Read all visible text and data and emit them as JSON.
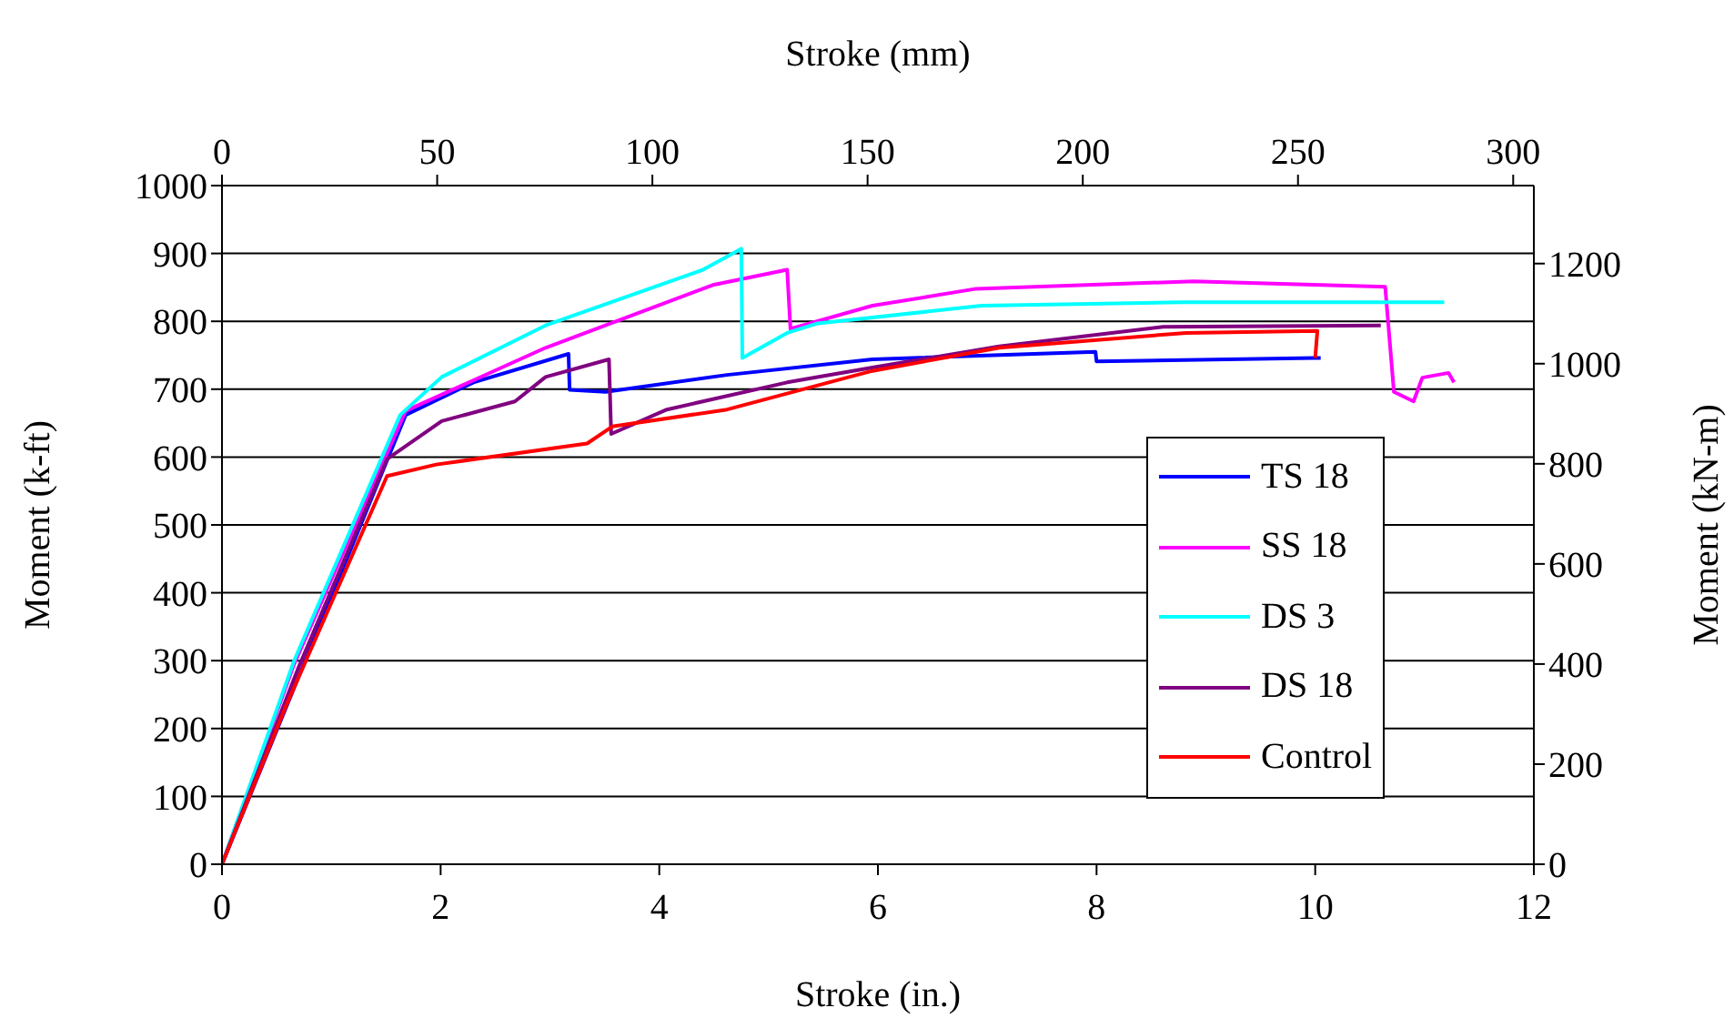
{
  "chart_data": {
    "type": "line",
    "xlabel": "Stroke (in.)",
    "x2label": "Stroke (mm)",
    "ylabel": "Moment (k-ft)",
    "y2label": "Moment (kN-m)",
    "xlim": [
      0,
      12
    ],
    "xticks": [
      0,
      2,
      4,
      6,
      8,
      10,
      12
    ],
    "ylim": [
      0,
      1000
    ],
    "yticks": [
      0,
      100,
      200,
      300,
      400,
      500,
      600,
      700,
      800,
      900,
      1000
    ],
    "x2lim": [
      0,
      304.8
    ],
    "x2ticks": [
      0,
      50,
      100,
      150,
      200,
      250,
      300
    ],
    "y2lim": [
      0,
      1355.8
    ],
    "y2ticks": [
      0,
      200,
      400,
      600,
      800,
      1000,
      1200
    ],
    "grid": "y",
    "legend": "right",
    "marker": "none",
    "line_style": "solid",
    "series": [
      {
        "name": "TS 18",
        "color": "#0000ff",
        "x": [
          0,
          1.68,
          2.3,
          3.17,
          3.18,
          3.51,
          4.62,
          5.95,
          7.99,
          8.0,
          9.99,
          10.05
        ],
        "values": [
          0,
          662,
          710,
          752,
          699,
          696,
          721,
          744,
          755,
          741,
          746,
          746
        ]
      },
      {
        "name": "SS 18",
        "color": "#ff00ff",
        "x": [
          0,
          0.66,
          1.68,
          2.96,
          3.74,
          4.5,
          5.17,
          5.2,
          5.95,
          6.9,
          8.89,
          10.64,
          10.72,
          10.9,
          10.98,
          11.22,
          11.27
        ],
        "values": [
          0,
          295,
          668,
          761,
          808,
          854,
          876,
          789,
          823,
          848,
          859,
          851,
          696,
          682,
          717,
          724,
          710
        ]
      },
      {
        "name": "DS 3",
        "color": "#00ffff",
        "x": [
          0,
          0.66,
          1.63,
          2.01,
          2.96,
          4.4,
          4.75,
          4.76,
          5.17,
          5.45,
          6.95,
          8.77,
          11.18
        ],
        "values": [
          0,
          300,
          662,
          718,
          794,
          876,
          907,
          746,
          783,
          797,
          823,
          828,
          828
        ]
      },
      {
        "name": "DS 18",
        "color": "#800080",
        "x": [
          0,
          0.7,
          1.51,
          2.01,
          2.68,
          2.96,
          3.54,
          3.56,
          4.07,
          5.17,
          5.95,
          7.11,
          8.61,
          10.6
        ],
        "values": [
          0,
          290,
          597,
          653,
          682,
          718,
          744,
          634,
          670,
          710,
          732,
          763,
          792,
          794
        ]
      },
      {
        "name": "Control",
        "color": "#ff0000",
        "x": [
          0,
          0.58,
          1.51,
          1.96,
          3.34,
          3.57,
          4.62,
          5.95,
          7.11,
          8.82,
          10.02,
          10.0
        ],
        "values": [
          0,
          231,
          572,
          589,
          620,
          645,
          670,
          727,
          761,
          783,
          786,
          746
        ]
      }
    ]
  }
}
